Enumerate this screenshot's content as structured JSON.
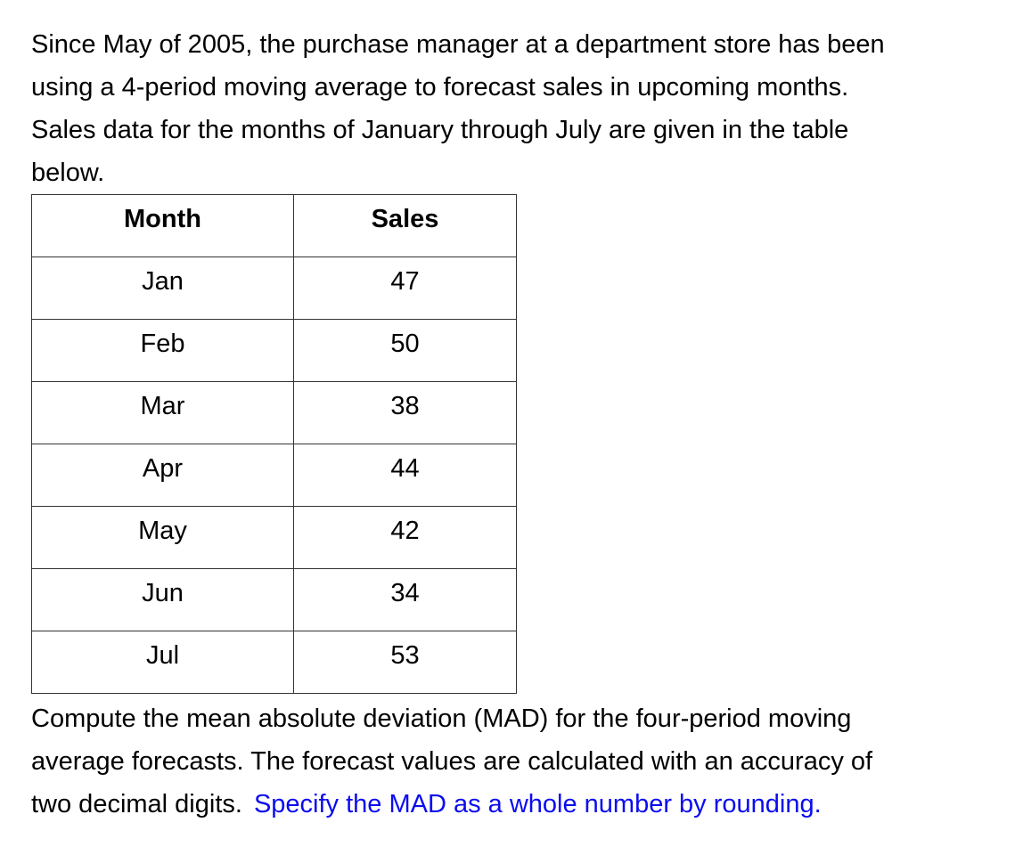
{
  "intro": {
    "lines": [
      "Since May of 2005, the purchase manager at a department store has been",
      "using a 4-period moving average to forecast sales in upcoming months.",
      "Sales data for the months of January through July are given in the table",
      "below."
    ]
  },
  "table": {
    "headers": [
      "Month",
      "Sales"
    ],
    "rows": [
      {
        "month": "Jan",
        "sales": "47"
      },
      {
        "month": "Feb",
        "sales": "50"
      },
      {
        "month": "Mar",
        "sales": "38"
      },
      {
        "month": "Apr",
        "sales": "44"
      },
      {
        "month": "May",
        "sales": "42"
      },
      {
        "month": "Jun",
        "sales": "34"
      },
      {
        "month": "Jul",
        "sales": "53"
      }
    ]
  },
  "question": {
    "lines": [
      "Compute the mean absolute deviation (MAD) for the four-period moving",
      "average forecasts. The forecast values are calculated with an accuracy of"
    ],
    "last_line_black": "two decimal digits.",
    "last_line_blue": "Specify the MAD as a whole number by rounding."
  },
  "chart_data": {
    "type": "table",
    "title": "",
    "columns": [
      "Month",
      "Sales"
    ],
    "categories": [
      "Jan",
      "Feb",
      "Mar",
      "Apr",
      "May",
      "Jun",
      "Jul"
    ],
    "values": [
      47,
      50,
      38,
      44,
      42,
      34,
      53
    ]
  },
  "colors": {
    "text": "#000000",
    "highlight_blue": "#0b0cf0",
    "table_border": "#333333",
    "background": "#ffffff"
  }
}
